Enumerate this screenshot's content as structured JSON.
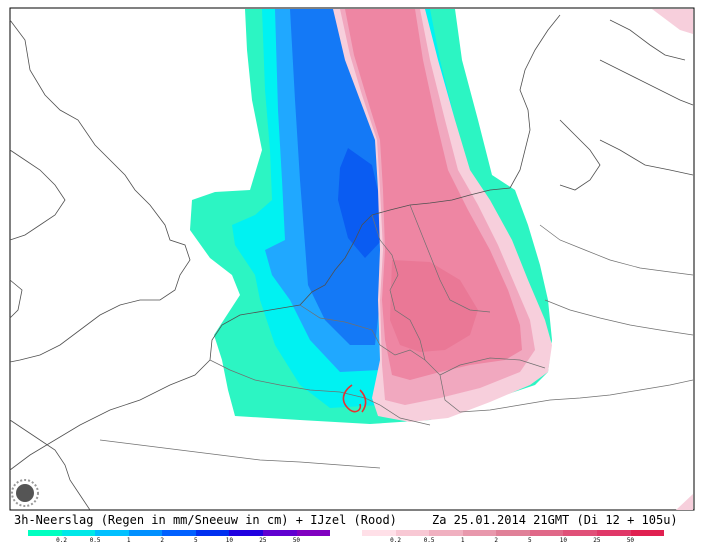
{
  "caption_left": "3h-Neerslag (Regen in mm/Sneeuw in cm) + IJzel (Rood)",
  "caption_right": "Za 25.01.2014 21GMT (Di 12 + 105u)",
  "rain_scale": {
    "ticks": [
      "0.2",
      "0.5",
      "1",
      "2",
      "5",
      "10",
      "25",
      "50"
    ],
    "colors": [
      "#00ffc0",
      "#00e8e8",
      "#00c0ff",
      "#0090ff",
      "#0060ff",
      "#0030f0",
      "#2000e0",
      "#6000d0",
      "#8000c0"
    ]
  },
  "ice_scale": {
    "ticks": [
      "0.2",
      "0.5",
      "1",
      "2",
      "5",
      "10",
      "25",
      "50"
    ],
    "colors": [
      "#ffe0e8",
      "#f8c8d4",
      "#f0b0c0",
      "#e898ac",
      "#e08098",
      "#e06888",
      "#e05078",
      "#e03868",
      "#e02050"
    ]
  },
  "map_colors": {
    "rain_light": "#2cf5c3",
    "rain_cyan": "#00f2f2",
    "rain_mid": "#20a8ff",
    "rain_blue": "#1479f6",
    "rain_deep": "#0a5cf2",
    "ice_light": "#f7cfdc",
    "ice_mid": "#f1a8bf",
    "ice_main": "#ee86a3",
    "ice_dark": "#ea7896",
    "border": "#707070",
    "coast": "#505050",
    "freezing_marker": "#e83030"
  },
  "logo_icon": "sun-gear-logo-icon"
}
